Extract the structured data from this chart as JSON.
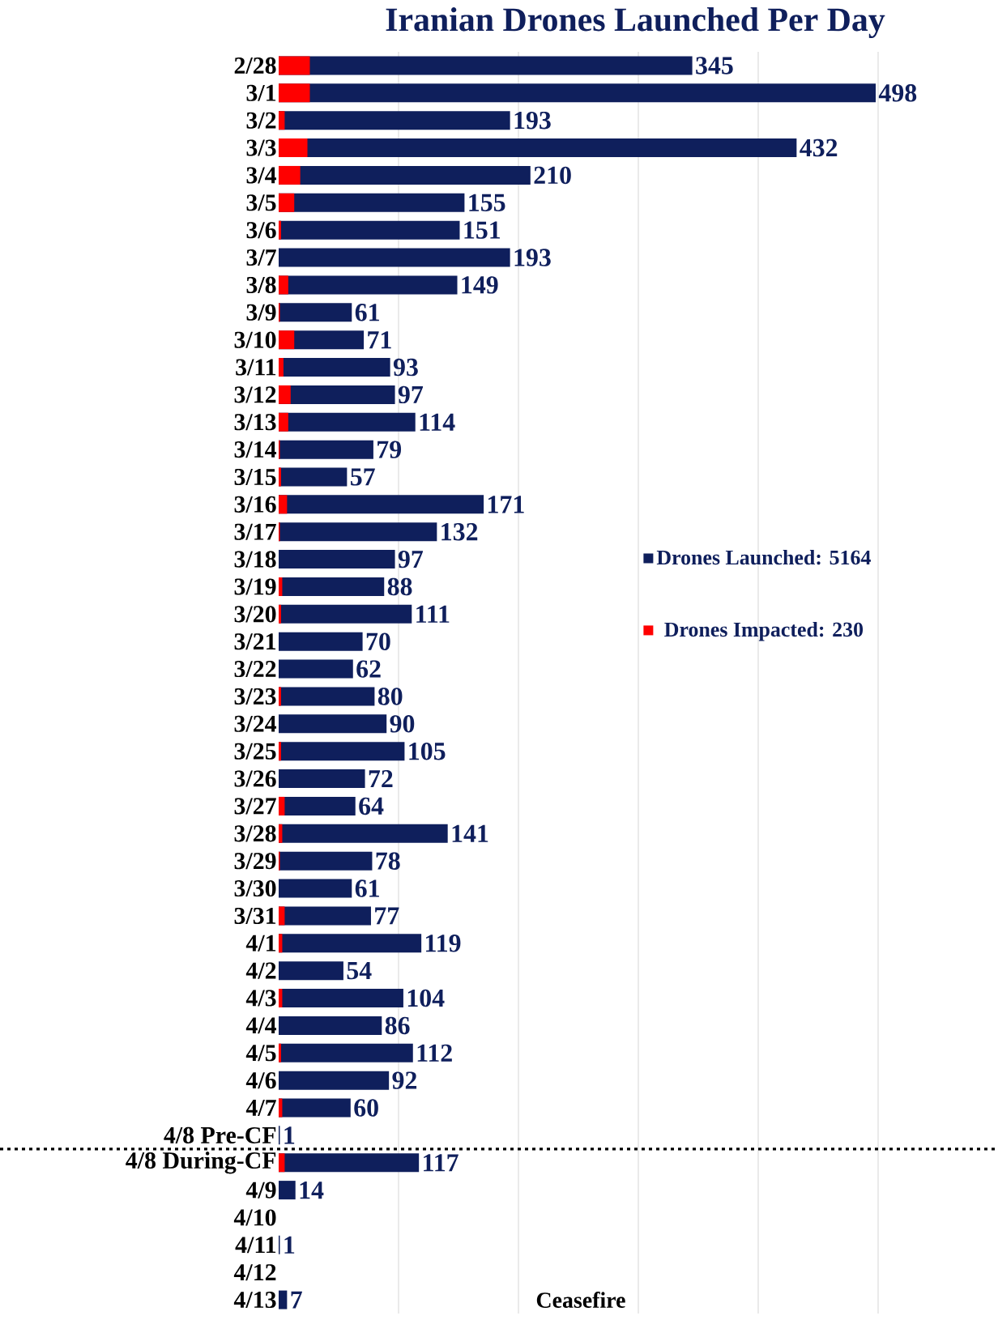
{
  "chart_data": {
    "type": "bar",
    "orientation": "horizontal",
    "title": "Iranian Drones Launched Per Day",
    "categories": [
      "2/28",
      "3/1",
      "3/2",
      "3/3",
      "3/4",
      "3/5",
      "3/6",
      "3/7",
      "3/8",
      "3/9",
      "3/10",
      "3/11",
      "3/12",
      "3/13",
      "3/14",
      "3/15",
      "3/16",
      "3/17",
      "3/18",
      "3/19",
      "3/20",
      "3/21",
      "3/22",
      "3/23",
      "3/24",
      "3/25",
      "3/26",
      "3/27",
      "3/28",
      "3/29",
      "3/30",
      "3/31",
      "4/1",
      "4/2",
      "4/3",
      "4/4",
      "4/5",
      "4/6",
      "4/7",
      "4/8 Pre-CF",
      "4/8 During-CF",
      "4/9",
      "4/10",
      "4/11",
      "4/12",
      "4/13"
    ],
    "series": [
      {
        "name": "Drones Launched: 5164",
        "color": "#0f1f5c",
        "values": [
          345,
          498,
          193,
          432,
          210,
          155,
          151,
          193,
          149,
          61,
          71,
          93,
          97,
          114,
          79,
          57,
          171,
          132,
          97,
          88,
          111,
          70,
          62,
          80,
          90,
          105,
          72,
          64,
          141,
          78,
          61,
          77,
          119,
          54,
          104,
          86,
          112,
          92,
          60,
          1,
          117,
          14,
          0,
          1,
          0,
          7
        ],
        "value_labels": [
          "345",
          "498",
          "193",
          "432",
          "210",
          "155",
          "151",
          "193",
          "149",
          "61",
          "71",
          "93",
          "97",
          "114",
          "79",
          "57",
          "171",
          "132",
          "97",
          "88",
          "111",
          "70",
          "62",
          "80",
          "90",
          "105",
          "72",
          "64",
          "141",
          "78",
          "61",
          "77",
          "119",
          "54",
          "104",
          "86",
          "112",
          "92",
          "60",
          "1",
          "117",
          "14",
          null,
          "1",
          null,
          "7"
        ]
      },
      {
        "name": "Drones Impacted: 230",
        "color": "#ff0000",
        "values": [
          26,
          26,
          5,
          24,
          18,
          13,
          2,
          0,
          8,
          1,
          13,
          4,
          10,
          8,
          1,
          2,
          7,
          1,
          0,
          3,
          2,
          0,
          0,
          2,
          0,
          2,
          0,
          5,
          3,
          1,
          0,
          5,
          3,
          0,
          3,
          0,
          2,
          0,
          3,
          0,
          5,
          0,
          0,
          0,
          0,
          0
        ]
      }
    ],
    "xlim": [
      0,
      600
    ],
    "xticks": [
      {
        "value": 100,
        "label": null
      },
      {
        "value": 200,
        "label": null
      },
      {
        "value": 300,
        "label": null
      },
      {
        "value": 400,
        "label": null
      },
      {
        "value": 500,
        "label": null
      }
    ],
    "tick_labels": "y",
    "grid": "x",
    "legend": "right",
    "ref_lines": [
      {
        "axis": "y",
        "value": "4/8 During-CF",
        "line_style": "dotted",
        "color": "#000000"
      }
    ],
    "annotations": [
      "Ceasefire"
    ]
  }
}
